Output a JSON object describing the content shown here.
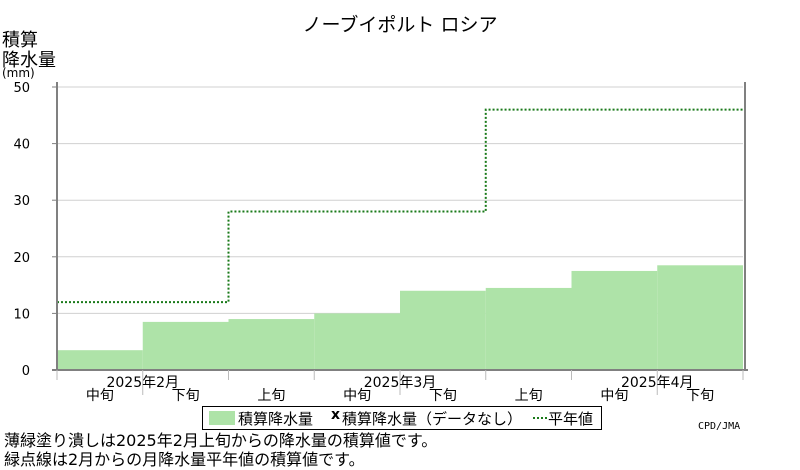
{
  "chart_data": {
    "type": "area",
    "title": "ノーブイポルト ロシア",
    "ylabel_lines": [
      "積算",
      "降水量"
    ],
    "yunit": "(mm)",
    "ylim": [
      0,
      50
    ],
    "yticks": [
      0,
      10,
      20,
      30,
      40,
      50
    ],
    "grid": true,
    "periods": [
      "2025年2月中旬",
      "2025年2月下旬",
      "2025年3月上旬",
      "2025年3月中旬",
      "2025年3月下旬",
      "2025年4月上旬",
      "2025年4月中旬",
      "2025年4月下旬"
    ],
    "period_labels": [
      "中旬",
      "下旬",
      "上旬",
      "中旬",
      "下旬",
      "上旬",
      "中旬",
      "下旬"
    ],
    "month_labels": [
      {
        "label": "2025年2月",
        "center_period": 0.5
      },
      {
        "label": "2025年3月",
        "center_period": 3.5
      },
      {
        "label": "2025年4月",
        "center_period": 6.5
      }
    ],
    "series": [
      {
        "name": "積算降水量",
        "kind": "filled_step",
        "color": "#aee3a8",
        "values": [
          3.5,
          8.5,
          9.0,
          10.0,
          14.0,
          14.5,
          17.5,
          18.5
        ]
      },
      {
        "name": "平年値",
        "kind": "dotted_step",
        "color": "#1a7a1a",
        "values": [
          12.0,
          12.0,
          28.0,
          28.0,
          28.0,
          46.0,
          46.0,
          46.0
        ]
      }
    ],
    "legend": {
      "fill_label": "積算降水量",
      "nodata_marker": "x",
      "nodata_label": "積算降水量（データなし）",
      "normal_label": "平年値",
      "placement": "bottom"
    },
    "credit": "CPD/JMA",
    "notes": [
      "薄緑塗り潰しは2025年2月上旬からの降水量の積算値です。",
      "緑点線は2月からの月降水量平年値の積算値です。"
    ]
  }
}
